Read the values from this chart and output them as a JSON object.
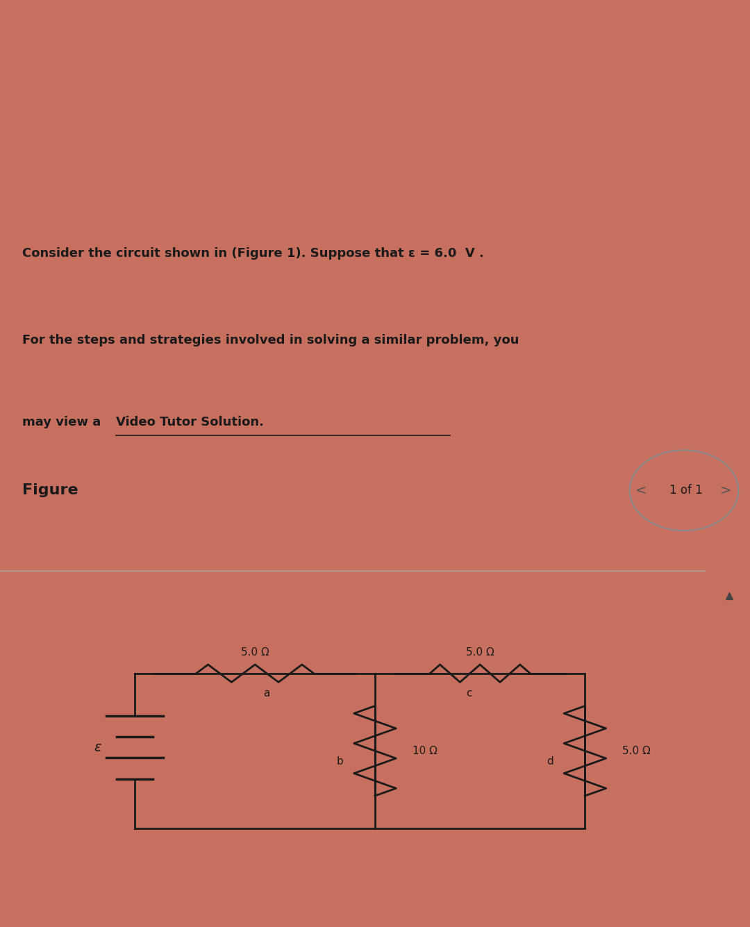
{
  "bg_top_color": "#c87060",
  "bg_text_box_color": "#b0b0a0",
  "bg_bottom_color": "#d0cfc8",
  "text_line1": "Consider the circuit shown in (Figure 1). Suppose that ε = 6.0  V .",
  "text_line2": "For the steps and strategies involved in solving a similar problem, you",
  "text_line3": "may view a ",
  "text_line3b": "Video Tutor Solution.",
  "figure_label": "Figure",
  "page_label": "1 of 1",
  "title_fontsize": 13,
  "circuit_color": "#1a1a1a",
  "resistor_label_1": "5.0 Ω",
  "resistor_label_2": "5.0 Ω",
  "resistor_label_3": "10 Ω",
  "resistor_label_4": "5.0 Ω",
  "node_a": "a",
  "node_b": "b",
  "node_c": "c",
  "node_d": "d",
  "emf_label": "ε"
}
